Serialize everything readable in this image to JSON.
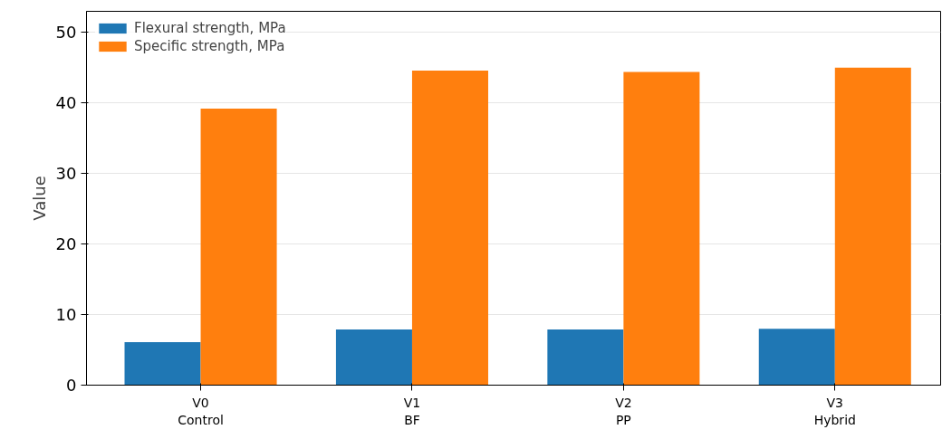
{
  "chart_data": {
    "type": "bar",
    "ylabel": "Value",
    "categories": [
      "V0\nControl",
      "V1\nBF",
      "V2\nPP",
      "V3\nHybrid"
    ],
    "series": [
      {
        "name": "Flexural strength, MPa",
        "color": "#1f77b4",
        "values": [
          6.1,
          7.9,
          7.9,
          8.0
        ]
      },
      {
        "name": "Specific strength, MPa",
        "color": "#ff7f0e",
        "values": [
          39.2,
          44.6,
          44.4,
          45.0
        ]
      }
    ],
    "ylim": [
      0,
      53
    ],
    "yticks": [
      0,
      10,
      20,
      30,
      40,
      50
    ],
    "grid": "y",
    "legend": "top left"
  }
}
